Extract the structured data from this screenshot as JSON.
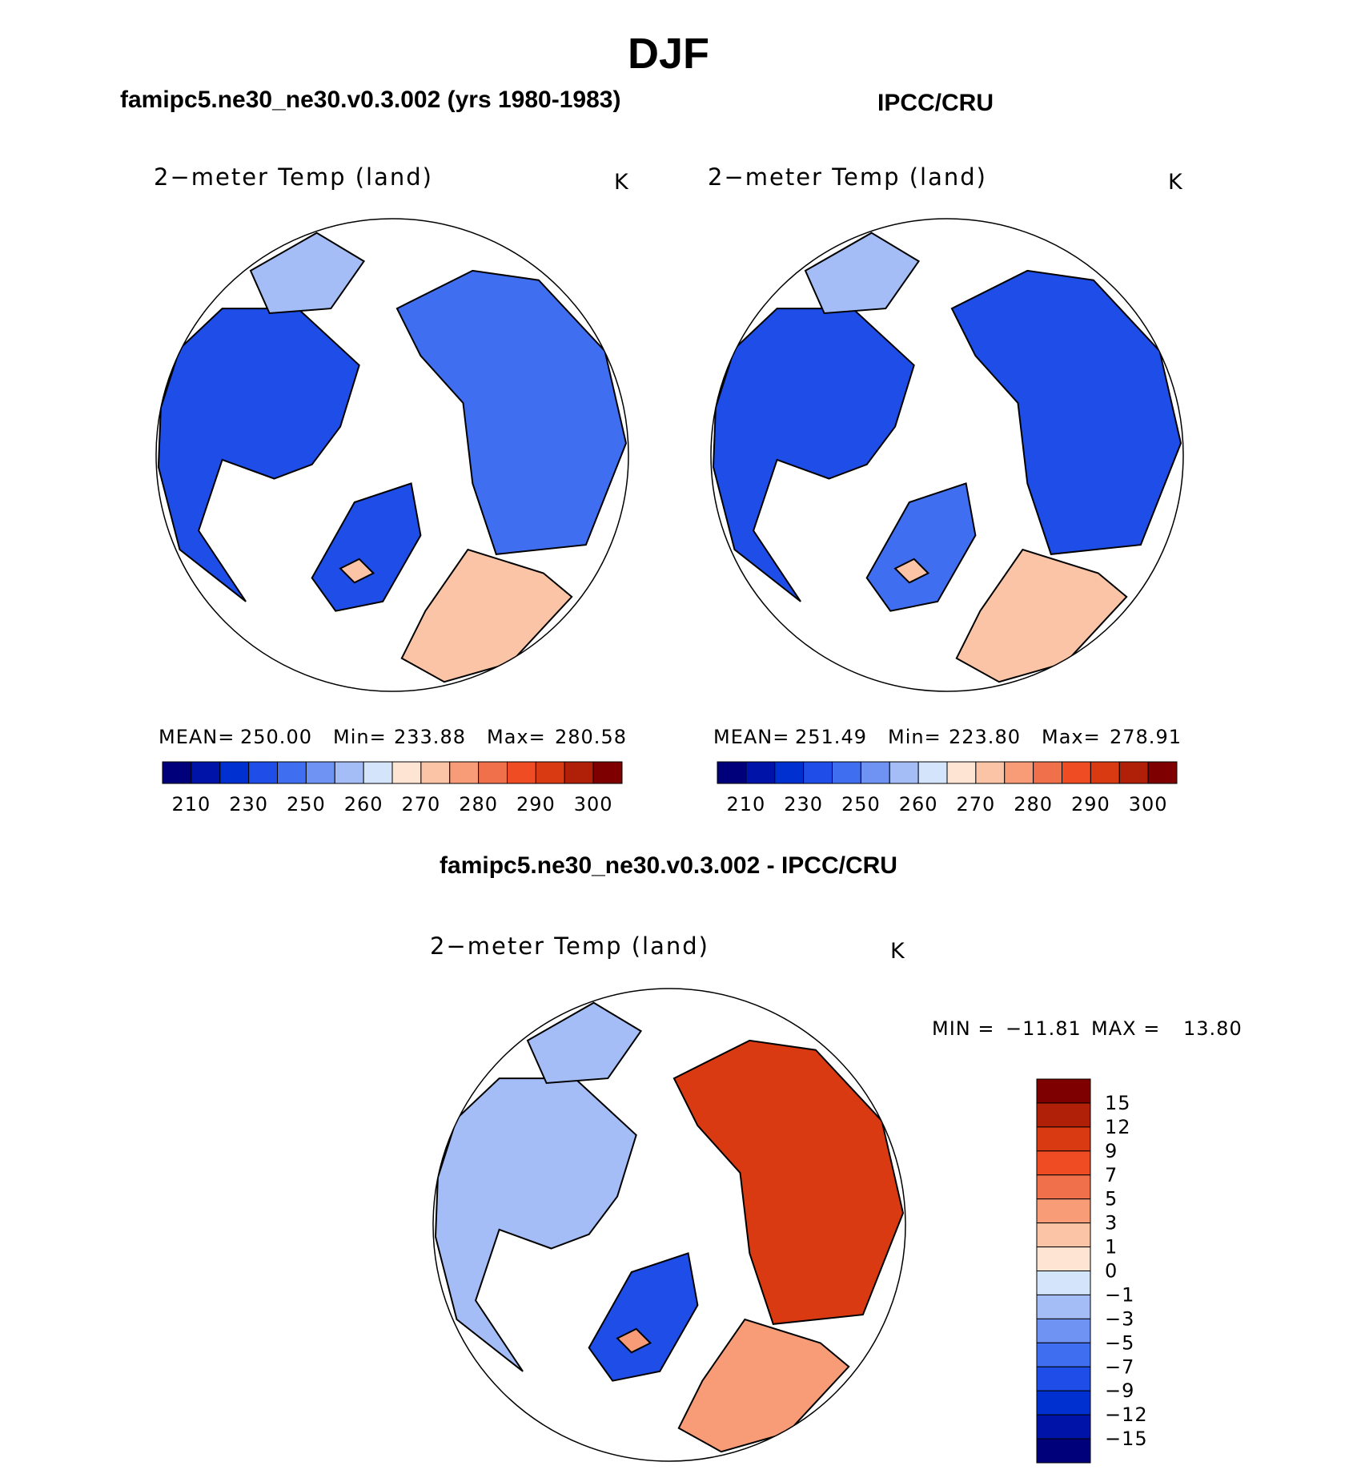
{
  "page": {
    "title": "DJF"
  },
  "palette": {
    "abs": [
      "#00007a",
      "#0013a8",
      "#0030cf",
      "#1e4de8",
      "#3f6ef0",
      "#6e93f3",
      "#a4bdf7",
      "#d4e4fb",
      "#fde4d3",
      "#fbc4a6",
      "#f79c77",
      "#f1704c",
      "#f04c24",
      "#d93a12",
      "#b02008",
      "#7e0000"
    ],
    "diff": [
      "#00007a",
      "#0013a8",
      "#0030cf",
      "#1e4de8",
      "#3f6ef0",
      "#6e93f3",
      "#a4bdf7",
      "#d4e4fb",
      "#fde4d3",
      "#fbc4a6",
      "#f79c77",
      "#f1704c",
      "#f04c24",
      "#d93a12",
      "#b02008",
      "#7e0000"
    ]
  },
  "chart_data": [
    {
      "type": "heatmap",
      "panel": "model",
      "title": "famipc5.ne30_ne30.v0.3.002 (yrs 1980-1983)",
      "variable": "2−meter Temp (land)",
      "units": "K",
      "stats": {
        "mean_label": "MEAN=",
        "mean": "250.00",
        "min_label": "Min=",
        "min": "233.88",
        "max_label": "Max=",
        "max": "280.58"
      },
      "colorbar_ticks": [
        "210",
        "230",
        "250",
        "260",
        "270",
        "280",
        "290",
        "300"
      ],
      "levels": [
        210,
        220,
        230,
        240,
        250,
        255,
        260,
        265,
        270,
        275,
        280,
        285,
        290,
        295,
        300
      ],
      "regions": {
        "north_america": 238,
        "greenland": 236,
        "siberia": 244,
        "europe": 272,
        "alaska": 256
      }
    },
    {
      "type": "heatmap",
      "panel": "obs",
      "title": "IPCC/CRU",
      "variable": "2−meter Temp (land)",
      "units": "K",
      "stats": {
        "mean_label": "MEAN=",
        "mean": "251.49",
        "min_label": "Min=",
        "min": "223.80",
        "max_label": "Max=",
        "max": "278.91"
      },
      "colorbar_ticks": [
        "210",
        "230",
        "250",
        "260",
        "270",
        "280",
        "290",
        "300"
      ],
      "levels": [
        210,
        220,
        230,
        240,
        250,
        255,
        260,
        265,
        270,
        275,
        280,
        285,
        290,
        295,
        300
      ],
      "regions": {
        "north_america": 238,
        "greenland": 240,
        "siberia": 236,
        "europe": 270,
        "alaska": 256
      }
    },
    {
      "type": "heatmap",
      "panel": "difference",
      "title": "famipc5.ne30_ne30.v0.3.002 - IPCC/CRU",
      "variable": "2−meter Temp (land)",
      "units": "K",
      "stats": {
        "min_label": "MIN =",
        "min": "−11.81",
        "max_label": "MAX =",
        "max": "13.80"
      },
      "colorbar_ticks": [
        "15",
        "12",
        "9",
        "7",
        "5",
        "3",
        "1",
        "0",
        "−1",
        "−3",
        "−5",
        "−7",
        "−9",
        "−12",
        "−15"
      ],
      "levels": [
        -15,
        -12,
        -9,
        -7,
        -5,
        -3,
        -1,
        0,
        1,
        3,
        5,
        7,
        9,
        12,
        15
      ],
      "regions": {
        "north_america": -3,
        "greenland": -8,
        "siberia": 11,
        "europe": 3,
        "alaska": -2
      }
    }
  ]
}
